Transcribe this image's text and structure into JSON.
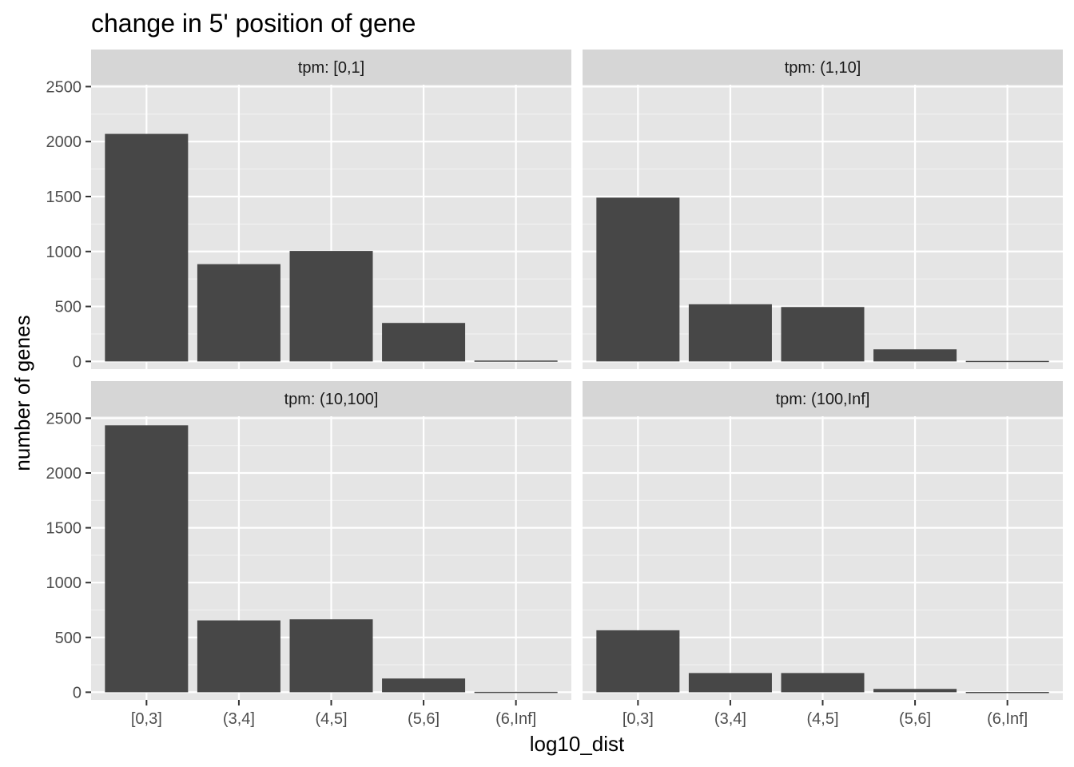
{
  "chart_data": {
    "type": "bar",
    "title": "change in 5' position of gene",
    "xlabel": "log10_dist",
    "ylabel": "number of genes",
    "categories": [
      "[0,3]",
      "(3,4]",
      "(4,5]",
      "(5,6]",
      "(6,Inf]"
    ],
    "ylim": [
      0,
      2500
    ],
    "y_ticks": [
      0,
      500,
      1000,
      1500,
      2000,
      2500
    ],
    "y_tick_labels": [
      "0",
      "500",
      "1000",
      "1500",
      "2000",
      "2500"
    ],
    "grid": true,
    "facets": [
      {
        "label": "tpm: [0,1]",
        "values": [
          2070,
          885,
          1005,
          350,
          8
        ]
      },
      {
        "label": "tpm: (1,10]",
        "values": [
          1490,
          520,
          495,
          110,
          5
        ]
      },
      {
        "label": "tpm: (10,100]",
        "values": [
          2435,
          655,
          665,
          125,
          4
        ]
      },
      {
        "label": "tpm: (100,Inf]",
        "values": [
          565,
          175,
          175,
          30,
          3
        ]
      }
    ],
    "colors": {
      "bar": "#474747",
      "panel": "#e5e5e5",
      "strip": "#d6d6d6"
    }
  }
}
